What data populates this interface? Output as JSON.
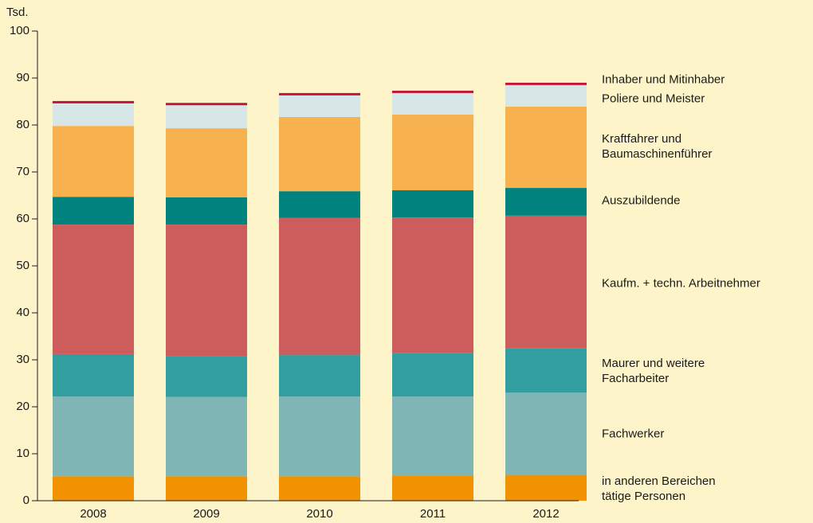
{
  "chart_data": {
    "type": "stacked_bar",
    "y_label": "Tsd.",
    "categories": [
      "2008",
      "2009",
      "2010",
      "2011",
      "2012"
    ],
    "ylim": [
      0,
      100
    ],
    "yticks": [
      0,
      10,
      20,
      30,
      40,
      50,
      60,
      70,
      80,
      90,
      100
    ],
    "series": [
      {
        "name": "in anderen Bereichen\ntätige Personen",
        "color": "#f39200",
        "values": [
          5.2,
          5.2,
          5.2,
          5.4,
          5.5
        ]
      },
      {
        "name": "Fachwerker",
        "color": "#7fb5b5",
        "values": [
          17.0,
          16.9,
          17.0,
          16.8,
          17.5
        ]
      },
      {
        "name": "Maurer und weitere\nFacharbeiter",
        "color": "#339e9f",
        "values": [
          9.0,
          8.6,
          8.8,
          9.3,
          9.4
        ]
      },
      {
        "name": "Kaufm. + techn. Arbeitnehmer",
        "color": "#cd5c5c",
        "values": [
          27.6,
          28.1,
          29.2,
          28.8,
          28.3
        ]
      },
      {
        "name": "Auszubildende",
        "color": "#00827f",
        "values": [
          5.9,
          5.8,
          5.7,
          5.8,
          5.9
        ]
      },
      {
        "name": "Kraftfahrer und\nBaumaschinenführer",
        "color": "#f7b24f",
        "values": [
          15.1,
          14.7,
          15.8,
          16.1,
          17.3
        ]
      },
      {
        "name": "Poliere und Meister",
        "color": "#d7e6e6",
        "values": [
          4.8,
          4.9,
          4.6,
          4.6,
          4.6
        ]
      },
      {
        "name": "Inhaber und Mitinhaber",
        "color": "#c0143c",
        "values": [
          0.5,
          0.5,
          0.5,
          0.5,
          0.5
        ]
      }
    ]
  }
}
